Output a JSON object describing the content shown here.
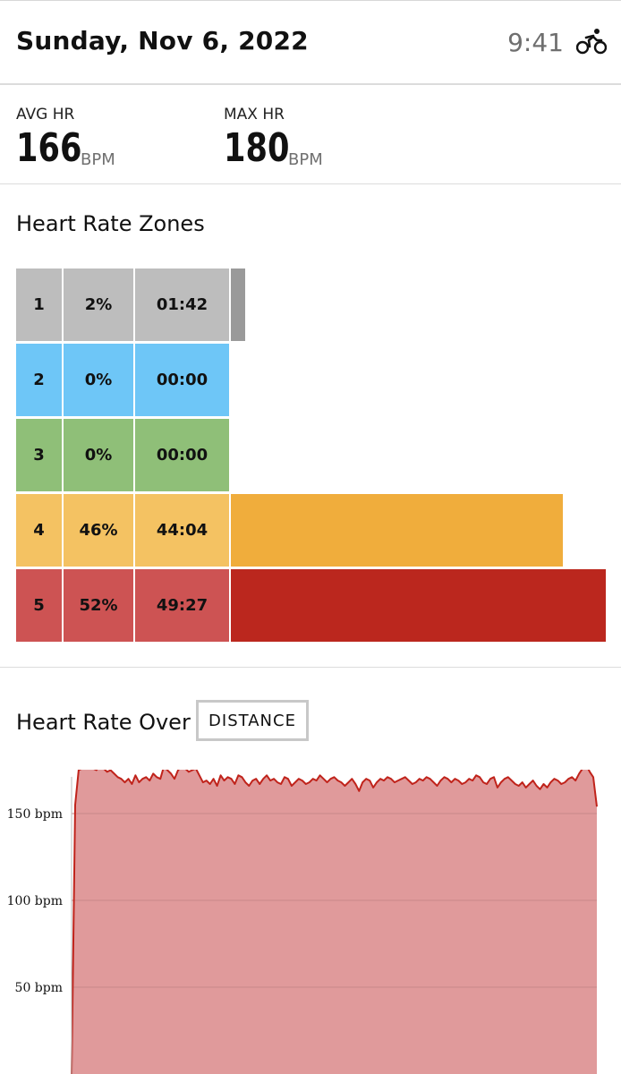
{
  "header": {
    "date": "Sunday, Nov 6, 2022",
    "duration": "9:41",
    "activity_icon": "cycling-icon"
  },
  "stats": {
    "avg": {
      "label": "AVG HR",
      "value": "166",
      "unit": "BPM"
    },
    "max": {
      "label": "MAX HR",
      "value": "180",
      "unit": "BPM"
    }
  },
  "zones": {
    "title": "Heart Rate Zones",
    "rows": [
      {
        "zone": "1",
        "percent": "2%",
        "time": "01:42",
        "fraction": 0.02,
        "color": "#bdbdbd",
        "bar_color": "#9a9a9a"
      },
      {
        "zone": "2",
        "percent": "0%",
        "time": "00:00",
        "fraction": 0.0,
        "color": "#6ec6f7",
        "bar_color": "#6ec6f7"
      },
      {
        "zone": "3",
        "percent": "0%",
        "time": "00:00",
        "fraction": 0.0,
        "color": "#8fbf78",
        "bar_color": "#8fbf78"
      },
      {
        "zone": "4",
        "percent": "46%",
        "time": "44:04",
        "fraction": 0.46,
        "color": "#f4c262",
        "bar_color": "#f0ad3c"
      },
      {
        "zone": "5",
        "percent": "52%",
        "time": "49:27",
        "fraction": 0.52,
        "color": "#cd5353",
        "bar_color": "#bb271e"
      }
    ]
  },
  "hr_chart": {
    "title": "Heart Rate Over",
    "toggle_label": "DISTANCE",
    "line_color": "#c0231b",
    "fill_color": "#e09a9b",
    "chart_data": {
      "type": "area",
      "xlabel": "",
      "ylabel": "",
      "yticks": [
        "150 bpm",
        "100 bpm",
        "50 bpm"
      ],
      "ytick_values": [
        150,
        100,
        50
      ],
      "ylim": [
        0,
        180
      ],
      "series": [
        {
          "values": [
            0,
            155,
            175,
            176,
            178,
            177,
            176,
            175,
            178,
            176,
            174,
            175,
            173,
            171,
            170,
            168,
            170,
            167,
            172,
            168,
            170,
            171,
            169,
            173,
            171,
            170,
            177,
            175,
            173,
            170,
            175,
            177,
            176,
            174,
            175,
            176,
            172,
            168,
            169,
            167,
            170,
            166,
            172,
            169,
            171,
            170,
            167,
            172,
            171,
            168,
            166,
            169,
            170,
            167,
            170,
            172,
            169,
            170,
            168,
            167,
            171,
            170,
            166,
            168,
            170,
            169,
            167,
            168,
            170,
            169,
            172,
            170,
            168,
            170,
            171,
            169,
            168,
            166,
            168,
            170,
            167,
            163,
            168,
            170,
            169,
            165,
            168,
            170,
            169,
            171,
            170,
            168,
            169,
            170,
            171,
            169,
            167,
            168,
            170,
            169,
            171,
            170,
            168,
            166,
            169,
            171,
            170,
            168,
            170,
            169,
            167,
            168,
            170,
            169,
            172,
            171,
            168,
            167,
            170,
            171,
            165,
            168,
            170,
            171,
            169,
            167,
            166,
            168,
            165,
            167,
            169,
            166,
            164,
            167,
            165,
            168,
            170,
            169,
            167,
            168,
            170,
            171,
            169,
            173,
            176,
            178,
            174,
            171,
            154
          ]
        }
      ]
    }
  }
}
